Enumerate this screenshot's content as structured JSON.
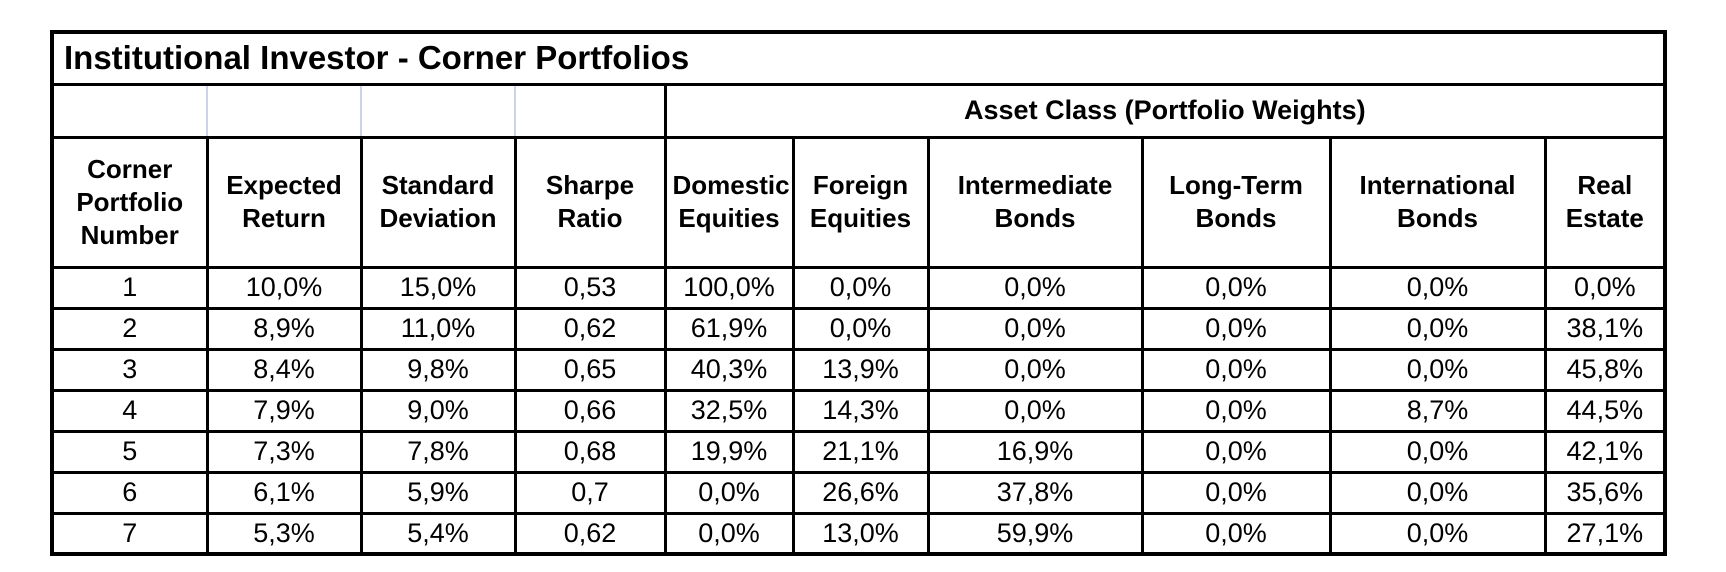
{
  "chart_data": {
    "type": "table",
    "title": "Institutional Investor - Corner Portfolios",
    "group_header": "Asset Class (Portfolio Weights)",
    "group_header_spans_columns": [
      4,
      9
    ],
    "columns": [
      "Corner Portfolio Number",
      "Expected Return",
      "Standard Deviation",
      "Sharpe Ratio",
      "Domestic Equities",
      "Foreign Equities",
      "Intermediate Bonds",
      "Long-Term Bonds",
      "International Bonds",
      "Real Estate"
    ],
    "rows": [
      [
        "1",
        "10,0%",
        "15,0%",
        "0,53",
        "100,0%",
        "0,0%",
        "0,0%",
        "0,0%",
        "0,0%",
        "0,0%"
      ],
      [
        "2",
        "8,9%",
        "11,0%",
        "0,62",
        "61,9%",
        "0,0%",
        "0,0%",
        "0,0%",
        "0,0%",
        "38,1%"
      ],
      [
        "3",
        "8,4%",
        "9,8%",
        "0,65",
        "40,3%",
        "13,9%",
        "0,0%",
        "0,0%",
        "0,0%",
        "45,8%"
      ],
      [
        "4",
        "7,9%",
        "9,0%",
        "0,66",
        "32,5%",
        "14,3%",
        "0,0%",
        "0,0%",
        "8,7%",
        "44,5%"
      ],
      [
        "5",
        "7,3%",
        "7,8%",
        "0,68",
        "19,9%",
        "21,1%",
        "16,9%",
        "0,0%",
        "0,0%",
        "42,1%"
      ],
      [
        "6",
        "6,1%",
        "5,9%",
        "0,7",
        "0,0%",
        "26,6%",
        "37,8%",
        "0,0%",
        "0,0%",
        "35,6%"
      ],
      [
        "7",
        "5,3%",
        "5,4%",
        "0,62",
        "0,0%",
        "13,0%",
        "59,9%",
        "0,0%",
        "0,0%",
        "27,1%"
      ]
    ],
    "layout": {
      "decimal_separator": ",",
      "grid_on": true
    },
    "colors": {
      "border": "#000000",
      "gridline": "#ccd3e8",
      "background": "#ffffff",
      "text": "#000000"
    }
  }
}
